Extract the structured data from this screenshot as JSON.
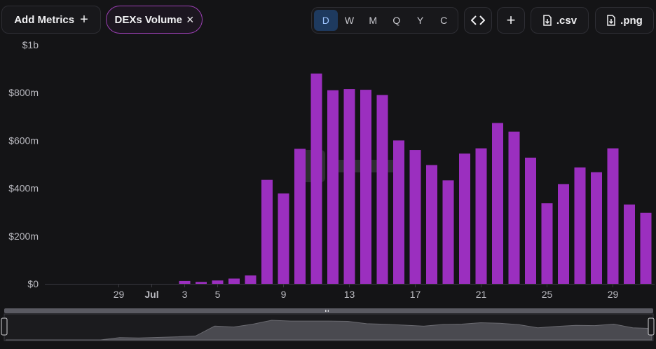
{
  "toolbar": {
    "add_metrics_label": "Add Metrics",
    "add_metrics_icon": "plus-icon",
    "metric_chip_label": "DEXs Volume",
    "metric_chip_icon": "close-icon",
    "periods": [
      "D",
      "W",
      "M",
      "Q",
      "Y",
      "C"
    ],
    "active_period": "D",
    "embed_icon": "code-icon",
    "add_icon": "plus-icon",
    "csv_label": ".csv",
    "png_label": ".png",
    "download_icon": "download-file-icon"
  },
  "colors": {
    "background": "#141416",
    "bar": "#9b2fbf",
    "active_period_bg": "#1e3a5f",
    "chip_border": "#9b3fb3"
  },
  "chart_data": {
    "type": "bar",
    "title": "",
    "xlabel": "",
    "ylabel": "",
    "ylim": [
      0,
      1000000000
    ],
    "yticks": [
      "$0",
      "$200m",
      "$400m",
      "$600m",
      "$800m",
      "$1b"
    ],
    "ytick_values": [
      0,
      200000000,
      400000000,
      600000000,
      800000000,
      1000000000
    ],
    "xtick_labels": [
      "29",
      "Jul",
      "3",
      "5",
      "9",
      "13",
      "17",
      "21",
      "25",
      "29"
    ],
    "xtick_dates": [
      "Jun 29",
      "Jul 1",
      "Jul 3",
      "Jul 5",
      "Jul 9",
      "Jul 13",
      "Jul 17",
      "Jul 21",
      "Jul 25",
      "Jul 29"
    ],
    "categories": [
      "Jun 27",
      "Jun 28",
      "Jun 29",
      "Jun 30",
      "Jul 1",
      "Jul 2",
      "Jul 3",
      "Jul 4",
      "Jul 5",
      "Jul 6",
      "Jul 7",
      "Jul 8",
      "Jul 9",
      "Jul 10",
      "Jul 11",
      "Jul 12",
      "Jul 13",
      "Jul 14",
      "Jul 15",
      "Jul 16",
      "Jul 17",
      "Jul 18",
      "Jul 19",
      "Jul 20",
      "Jul 21",
      "Jul 22",
      "Jul 23",
      "Jul 24",
      "Jul 25",
      "Jul 26",
      "Jul 27",
      "Jul 28",
      "Jul 29",
      "Jul 30",
      "Jul 31"
    ],
    "values": [
      0,
      0,
      0,
      0,
      0,
      0,
      12000000,
      8000000,
      14000000,
      22000000,
      35000000,
      435000000,
      378000000,
      565000000,
      880000000,
      810000000,
      815000000,
      812000000,
      790000000,
      600000000,
      560000000,
      497000000,
      433000000,
      545000000,
      567000000,
      673000000,
      637000000,
      528000000,
      337000000,
      417000000,
      487000000,
      467000000,
      567000000,
      332000000,
      297000000
    ],
    "grid": false,
    "legend": "none"
  },
  "navigator": {
    "range_label": "data-range-navigator"
  }
}
